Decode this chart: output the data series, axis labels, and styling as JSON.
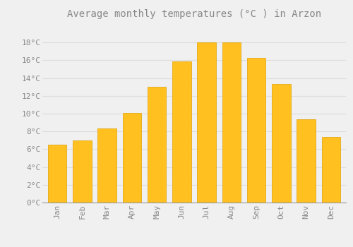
{
  "title": "Average monthly temperatures (°C ) in Arzon",
  "months": [
    "Jan",
    "Feb",
    "Mar",
    "Apr",
    "May",
    "Jun",
    "Jul",
    "Aug",
    "Sep",
    "Oct",
    "Nov",
    "Dec"
  ],
  "values": [
    6.5,
    7.0,
    8.3,
    10.1,
    13.0,
    15.9,
    18.0,
    18.0,
    16.3,
    13.3,
    9.4,
    7.4
  ],
  "bar_color": "#FFC020",
  "bar_edge_color": "#E0A000",
  "background_color": "#F0F0F0",
  "plot_bg_color": "#F0F0F0",
  "grid_color": "#DDDDDD",
  "text_color": "#888888",
  "ylim": [
    0,
    20
  ],
  "yticks": [
    0,
    2,
    4,
    6,
    8,
    10,
    12,
    14,
    16,
    18
  ],
  "title_fontsize": 10,
  "tick_fontsize": 8,
  "bar_width": 0.75
}
